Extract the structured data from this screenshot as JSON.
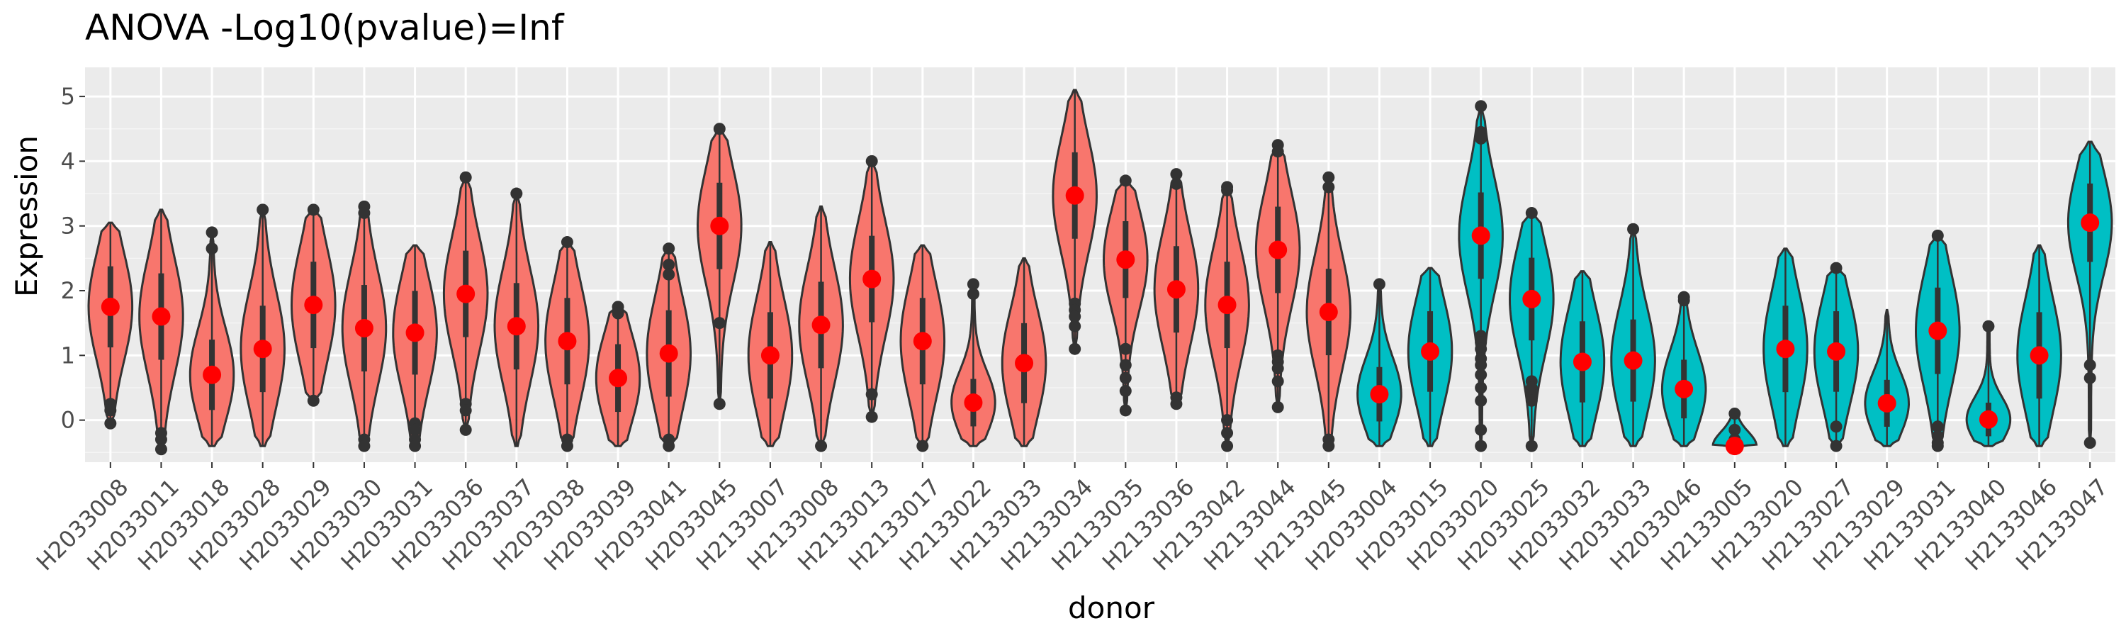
{
  "chart_data": {
    "type": "violin",
    "title": "ANOVA -Log10(pvalue)=Inf",
    "xlabel": "donor",
    "ylabel": "Expression",
    "ylim": [
      -0.65,
      5.45
    ],
    "y_ticks": [
      0,
      1,
      2,
      3,
      4,
      5
    ],
    "grid": true,
    "panel_background": "#ebebeb",
    "colors": {
      "group_a": "#f8766d",
      "group_b": "#00bfc4",
      "mean_marker": "#ff0000",
      "outline": "#333333"
    },
    "categories": [
      "H2033008",
      "H2033011",
      "H2033018",
      "H2033028",
      "H2033029",
      "H2033030",
      "H2033031",
      "H2033036",
      "H2033037",
      "H2033038",
      "H2033039",
      "H2033041",
      "H2033045",
      "H2133007",
      "H2133008",
      "H2133013",
      "H2133017",
      "H2133022",
      "H2133033",
      "H2133034",
      "H2133035",
      "H2133036",
      "H2133042",
      "H2133044",
      "H2133045",
      "H2033004",
      "H2033015",
      "H2033020",
      "H2033025",
      "H2033032",
      "H2033033",
      "H2033046",
      "H2133005",
      "H2133020",
      "H2133027",
      "H2133029",
      "H2133031",
      "H2133040",
      "H2133046",
      "H2133047"
    ],
    "groups": [
      "a",
      "a",
      "a",
      "a",
      "a",
      "a",
      "a",
      "a",
      "a",
      "a",
      "a",
      "a",
      "a",
      "a",
      "a",
      "a",
      "a",
      "a",
      "a",
      "a",
      "a",
      "a",
      "a",
      "a",
      "a",
      "b",
      "b",
      "b",
      "b",
      "b",
      "b",
      "b",
      "b",
      "b",
      "b",
      "b",
      "b",
      "b",
      "b",
      "b"
    ],
    "means": [
      1.75,
      1.6,
      0.7,
      1.1,
      1.78,
      1.42,
      1.35,
      1.95,
      1.45,
      1.22,
      0.65,
      1.03,
      3.0,
      1.0,
      1.47,
      2.18,
      1.22,
      0.27,
      0.88,
      3.47,
      2.48,
      2.02,
      1.78,
      2.63,
      1.67,
      0.4,
      1.06,
      2.85,
      1.87,
      0.9,
      0.92,
      0.48,
      -0.4,
      1.1,
      1.06,
      0.26,
      1.38,
      0.01,
      1.0,
      3.05
    ],
    "min": [
      -0.05,
      -0.45,
      -0.4,
      -0.4,
      0.3,
      -0.4,
      -0.4,
      -0.15,
      -0.4,
      -0.4,
      -0.4,
      -0.4,
      0.25,
      -0.4,
      -0.4,
      0.05,
      -0.4,
      -0.4,
      -0.4,
      1.1,
      0.15,
      0.25,
      -0.4,
      0.2,
      -0.4,
      -0.4,
      -0.4,
      -0.4,
      -0.4,
      -0.4,
      -0.4,
      -0.4,
      -0.4,
      -0.4,
      -0.4,
      -0.4,
      -0.4,
      -0.4,
      -0.4,
      -0.35
    ],
    "max": [
      3.05,
      3.25,
      2.9,
      3.25,
      3.25,
      3.3,
      2.7,
      3.75,
      3.5,
      2.75,
      1.75,
      2.65,
      4.5,
      2.75,
      3.3,
      4.0,
      2.7,
      2.1,
      2.5,
      5.1,
      3.7,
      3.8,
      3.6,
      4.25,
      3.75,
      2.1,
      2.35,
      4.85,
      3.2,
      2.3,
      2.95,
      1.9,
      0.1,
      2.65,
      2.35,
      1.7,
      2.85,
      1.45,
      2.7,
      4.3
    ],
    "outliers": [
      [
        0.25,
        0.15,
        -0.05
      ],
      [
        -0.2,
        -0.3,
        -0.45
      ],
      [
        2.65,
        2.9
      ],
      [
        3.25
      ],
      [
        3.25,
        0.3
      ],
      [
        3.3,
        3.2,
        -0.3,
        -0.4
      ],
      [
        -0.05,
        -0.15,
        -0.3,
        -0.4
      ],
      [
        3.75,
        0.25,
        0.15,
        -0.15
      ],
      [
        3.5
      ],
      [
        2.75,
        -0.3,
        -0.4
      ],
      [
        1.75,
        1.65
      ],
      [
        2.65,
        2.4,
        2.25,
        -0.3,
        -0.4
      ],
      [
        4.5,
        1.5,
        0.25
      ],
      [],
      [
        -0.4
      ],
      [
        4.0,
        0.4,
        0.05
      ],
      [
        -0.4
      ],
      [
        2.1,
        1.95
      ],
      [],
      [
        1.8,
        1.7,
        1.6,
        1.45,
        1.1
      ],
      [
        3.7,
        1.1,
        0.85,
        0.65,
        0.45,
        0.15
      ],
      [
        3.8,
        3.65,
        0.35,
        0.25
      ],
      [
        3.6,
        3.55,
        0.0,
        -0.2,
        -0.4
      ],
      [
        4.25,
        4.15,
        1.0,
        0.9,
        0.8,
        0.6,
        0.2
      ],
      [
        3.75,
        3.6,
        -0.3,
        -0.4
      ],
      [
        2.1
      ],
      [],
      [
        4.85,
        4.45,
        4.35,
        1.3,
        1.2,
        1.1,
        0.95,
        0.85,
        0.7,
        0.5,
        0.3,
        -0.15,
        -0.4
      ],
      [
        3.2,
        0.6,
        0.5,
        0.4,
        0.3,
        -0.4
      ],
      [],
      [
        2.95
      ],
      [
        1.9,
        1.85
      ],
      [
        0.1,
        -0.15,
        -0.3
      ],
      [],
      [
        2.35,
        -0.1,
        -0.4
      ],
      [],
      [
        2.85,
        -0.1,
        -0.25,
        -0.35,
        -0.4
      ],
      [
        1.45
      ],
      [],
      [
        0.85,
        0.65,
        -0.35
      ]
    ]
  }
}
